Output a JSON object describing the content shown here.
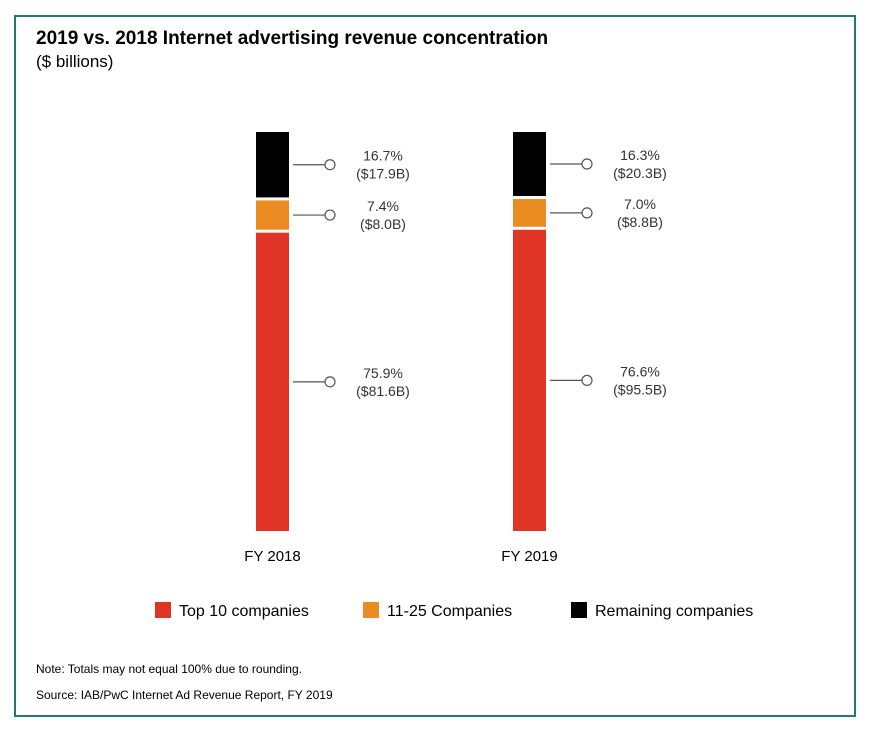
{
  "header": {
    "title": "2019 vs. 2018 Internet advertising revenue concentration",
    "subtitle": "($ billions)"
  },
  "footer": {
    "note": "Note: Totals may not equal 100% due to rounding.",
    "source": "Source: IAB/PwC Internet Ad Revenue Report, FY 2019"
  },
  "colors": {
    "top10": "#e03426",
    "mid": "#ea8c22",
    "remaining": "#000000",
    "frame": "#1e7a72",
    "leader": "#555555"
  },
  "chart_data": {
    "type": "bar",
    "stacked": true,
    "title": "2019 vs. 2018 Internet advertising revenue concentration",
    "subtitle": "($ billions)",
    "categories": [
      "FY 2018",
      "FY 2019"
    ],
    "series": [
      {
        "name": "Top 10 companies",
        "color": "#e03426",
        "values": [
          81.6,
          95.5
        ],
        "percent": [
          75.9,
          76.6
        ],
        "labels": [
          [
            "75.9%",
            "($81.6B)"
          ],
          [
            "76.6%",
            "($95.5B)"
          ]
        ]
      },
      {
        "name": "11-25 Companies",
        "color": "#ea8c22",
        "values": [
          8.0,
          8.8
        ],
        "percent": [
          7.4,
          7.0
        ],
        "labels": [
          [
            "7.4%",
            "($8.0B)"
          ],
          [
            "7.0%",
            "($8.8B)"
          ]
        ]
      },
      {
        "name": "Remaining companies",
        "color": "#000000",
        "values": [
          17.9,
          20.3
        ],
        "percent": [
          16.7,
          16.3
        ],
        "labels": [
          [
            "16.7%",
            "($17.9B)"
          ],
          [
            "16.3%",
            "($20.3B)"
          ]
        ]
      }
    ],
    "legend_position": "bottom",
    "grid": false,
    "axes_visible": false
  }
}
